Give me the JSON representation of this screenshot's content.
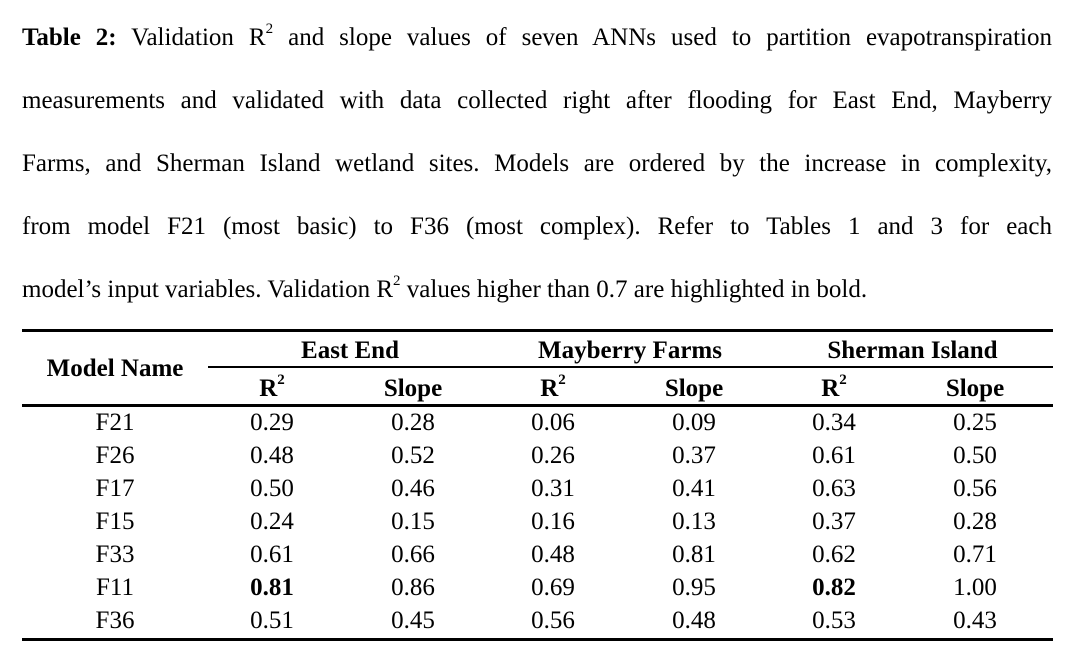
{
  "caption": {
    "label": "Table 2:",
    "line1_rest": " Validation R",
    "sup": "2",
    "line1_end": " and slope values of seven ANNs used to partition evapotranspiration",
    "line2": "measurements and validated with data collected right after flooding for East End, Mayberry",
    "line3": "Farms, and Sherman Island wetland sites. Models are ordered by the increase in complexity,",
    "line4": "from model F21 (most basic) to F36 (most complex). Refer to Tables 1 and 3 for each",
    "line5_start": "model’s input variables. Validation R",
    "line5_end": " values higher than 0.7 are highlighted in bold."
  },
  "table": {
    "model_header": "Model Name",
    "groups": [
      "East End",
      "Mayberry Farms",
      "Sherman Island"
    ],
    "sub_r": "R",
    "sub_sup": "2",
    "sub_slope": "Slope",
    "rows": [
      {
        "model": "F21",
        "values": [
          "0.29",
          "0.28",
          "0.06",
          "0.09",
          "0.34",
          "0.25"
        ],
        "bold": [
          false,
          false,
          false,
          false,
          false,
          false
        ]
      },
      {
        "model": "F26",
        "values": [
          "0.48",
          "0.52",
          "0.26",
          "0.37",
          "0.61",
          "0.50"
        ],
        "bold": [
          false,
          false,
          false,
          false,
          false,
          false
        ]
      },
      {
        "model": "F17",
        "values": [
          "0.50",
          "0.46",
          "0.31",
          "0.41",
          "0.63",
          "0.56"
        ],
        "bold": [
          false,
          false,
          false,
          false,
          false,
          false
        ]
      },
      {
        "model": "F15",
        "values": [
          "0.24",
          "0.15",
          "0.16",
          "0.13",
          "0.37",
          "0.28"
        ],
        "bold": [
          false,
          false,
          false,
          false,
          false,
          false
        ]
      },
      {
        "model": "F33",
        "values": [
          "0.61",
          "0.66",
          "0.48",
          "0.81",
          "0.62",
          "0.71"
        ],
        "bold": [
          false,
          false,
          false,
          false,
          false,
          false
        ]
      },
      {
        "model": "F11",
        "values": [
          "0.81",
          "0.86",
          "0.69",
          "0.95",
          "0.82",
          "1.00"
        ],
        "bold": [
          true,
          false,
          false,
          false,
          true,
          false
        ]
      },
      {
        "model": "F36",
        "values": [
          "0.51",
          "0.45",
          "0.56",
          "0.48",
          "0.53",
          "0.43"
        ],
        "bold": [
          false,
          false,
          false,
          false,
          false,
          false
        ]
      }
    ]
  }
}
